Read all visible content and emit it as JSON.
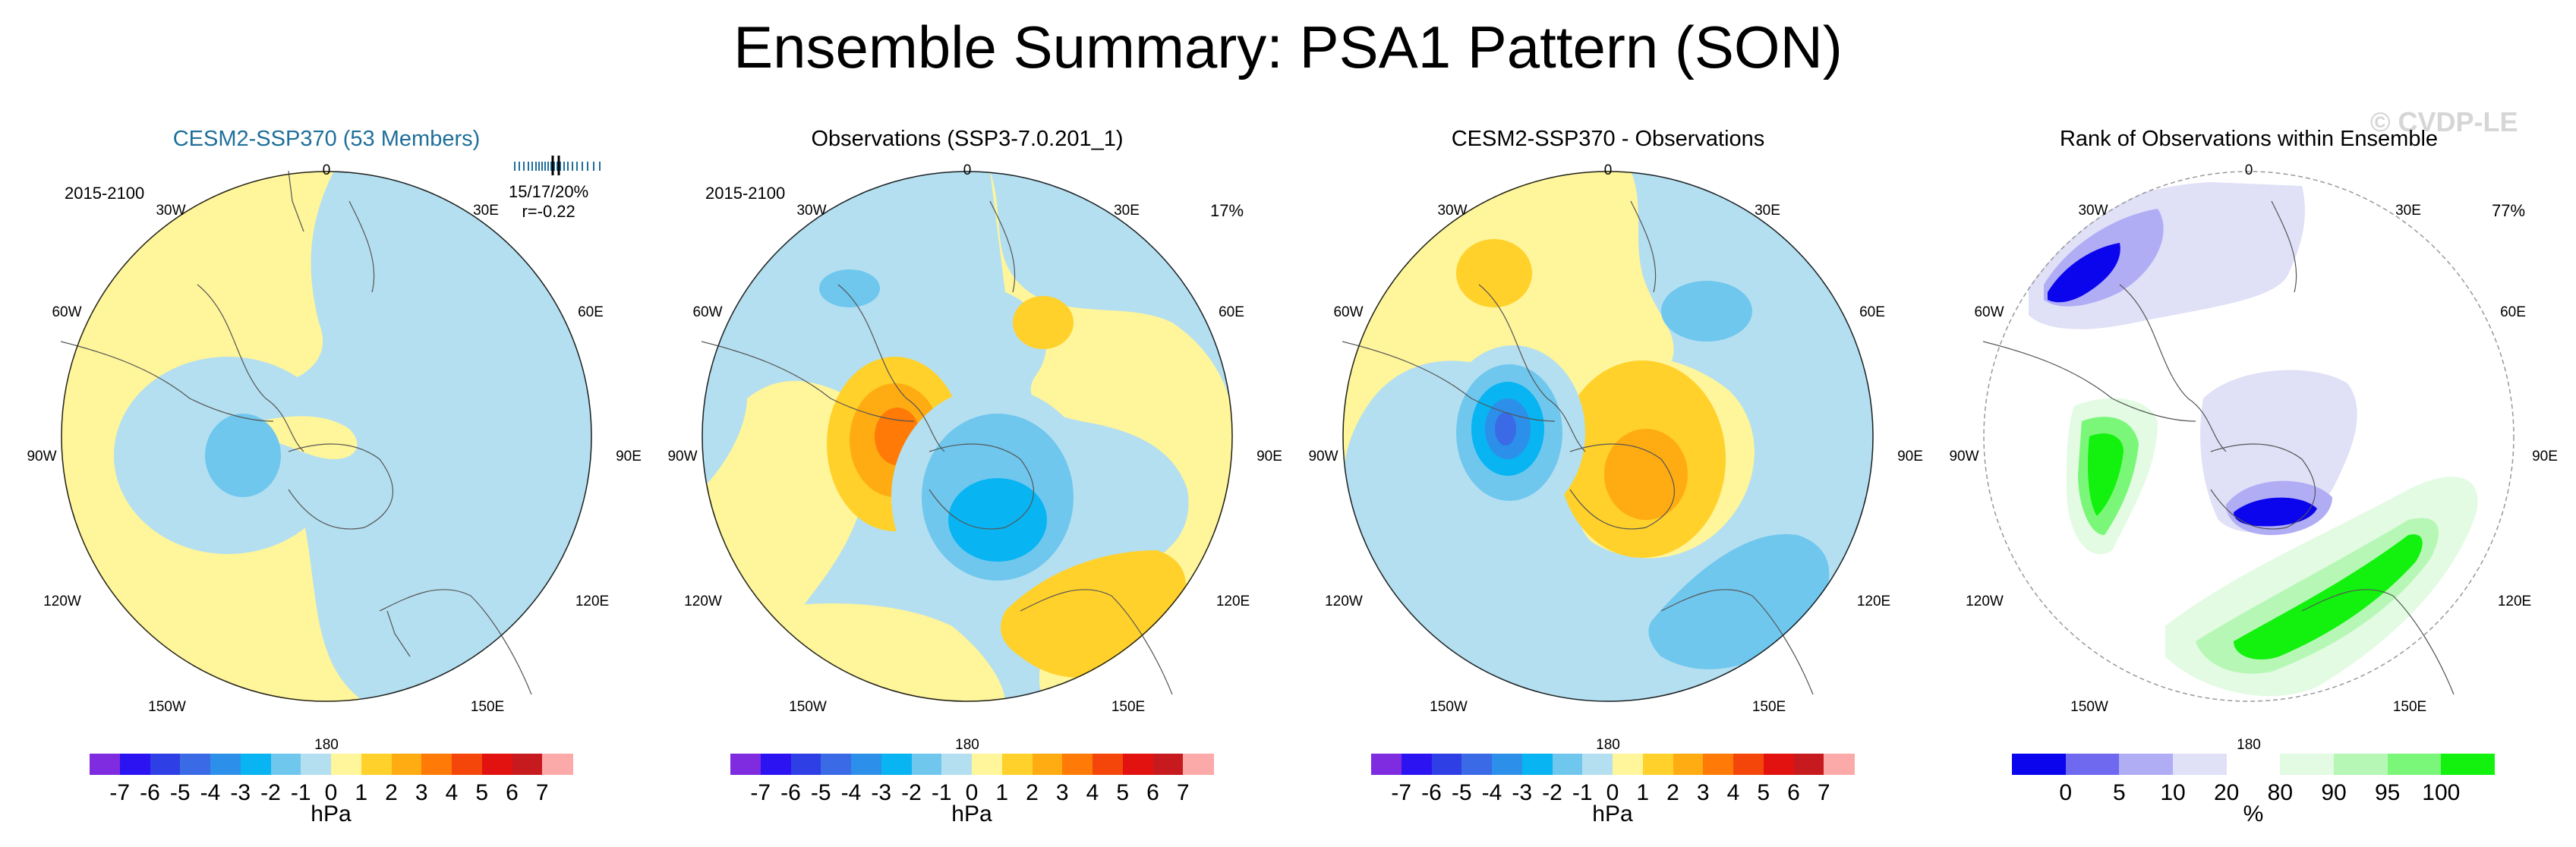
{
  "title": "Ensemble Summary: PSA1 Pattern (SON)",
  "watermark": "© CVDP-LE",
  "longitude_labels": [
    "0",
    "30E",
    "60E",
    "90E",
    "120E",
    "150E",
    "180",
    "150W",
    "120W",
    "90W",
    "60W",
    "30W"
  ],
  "panels": [
    {
      "title": "CESM2-SSP370 (53 Members)",
      "period": "2015-2100",
      "stats_line1": "15/17/20%",
      "stats_line2": "r=-0.22",
      "colorbar": {
        "ticks": [
          "-7",
          "-6",
          "-5",
          "-4",
          "-3",
          "-2",
          "-1",
          "0",
          "1",
          "2",
          "3",
          "4",
          "5",
          "6",
          "7"
        ],
        "unit": "hPa"
      }
    },
    {
      "title": "Observations (SSP3-7.0.201_1)",
      "period": "2015-2100",
      "percent": "17%",
      "colorbar": {
        "ticks": [
          "-7",
          "-6",
          "-5",
          "-4",
          "-3",
          "-2",
          "-1",
          "0",
          "1",
          "2",
          "3",
          "4",
          "5",
          "6",
          "7"
        ],
        "unit": "hPa"
      }
    },
    {
      "title": "CESM2-SSP370 - Observations",
      "colorbar": {
        "ticks": [
          "-7",
          "-6",
          "-5",
          "-4",
          "-3",
          "-2",
          "-1",
          "0",
          "1",
          "2",
          "3",
          "4",
          "5",
          "6",
          "7"
        ],
        "unit": "hPa"
      }
    },
    {
      "title": "Rank of Observations within Ensemble",
      "percent": "77%",
      "colorbar": {
        "ticks": [
          "0",
          "5",
          "10",
          "20",
          "80",
          "90",
          "95",
          "100"
        ],
        "unit": "%"
      }
    }
  ],
  "palettes": {
    "hpa": [
      "#7f2be0",
      "#2c14f2",
      "#2f3fe6",
      "#3a6ae6",
      "#2c8fe9",
      "#08b4f2",
      "#6fc7ee",
      "#b4dff0",
      "#fff59a",
      "#ffd12a",
      "#ffab12",
      "#ff7a06",
      "#f4460a",
      "#e1120f",
      "#c71a1e",
      "#fca9a9"
    ],
    "rank": [
      "#0a05ec",
      "#6e69ee",
      "#b0adf5",
      "#e0e0f7",
      "#ffffff",
      "#e2fbe2",
      "#b7f7b6",
      "#7af779",
      "#12f20e"
    ]
  }
}
